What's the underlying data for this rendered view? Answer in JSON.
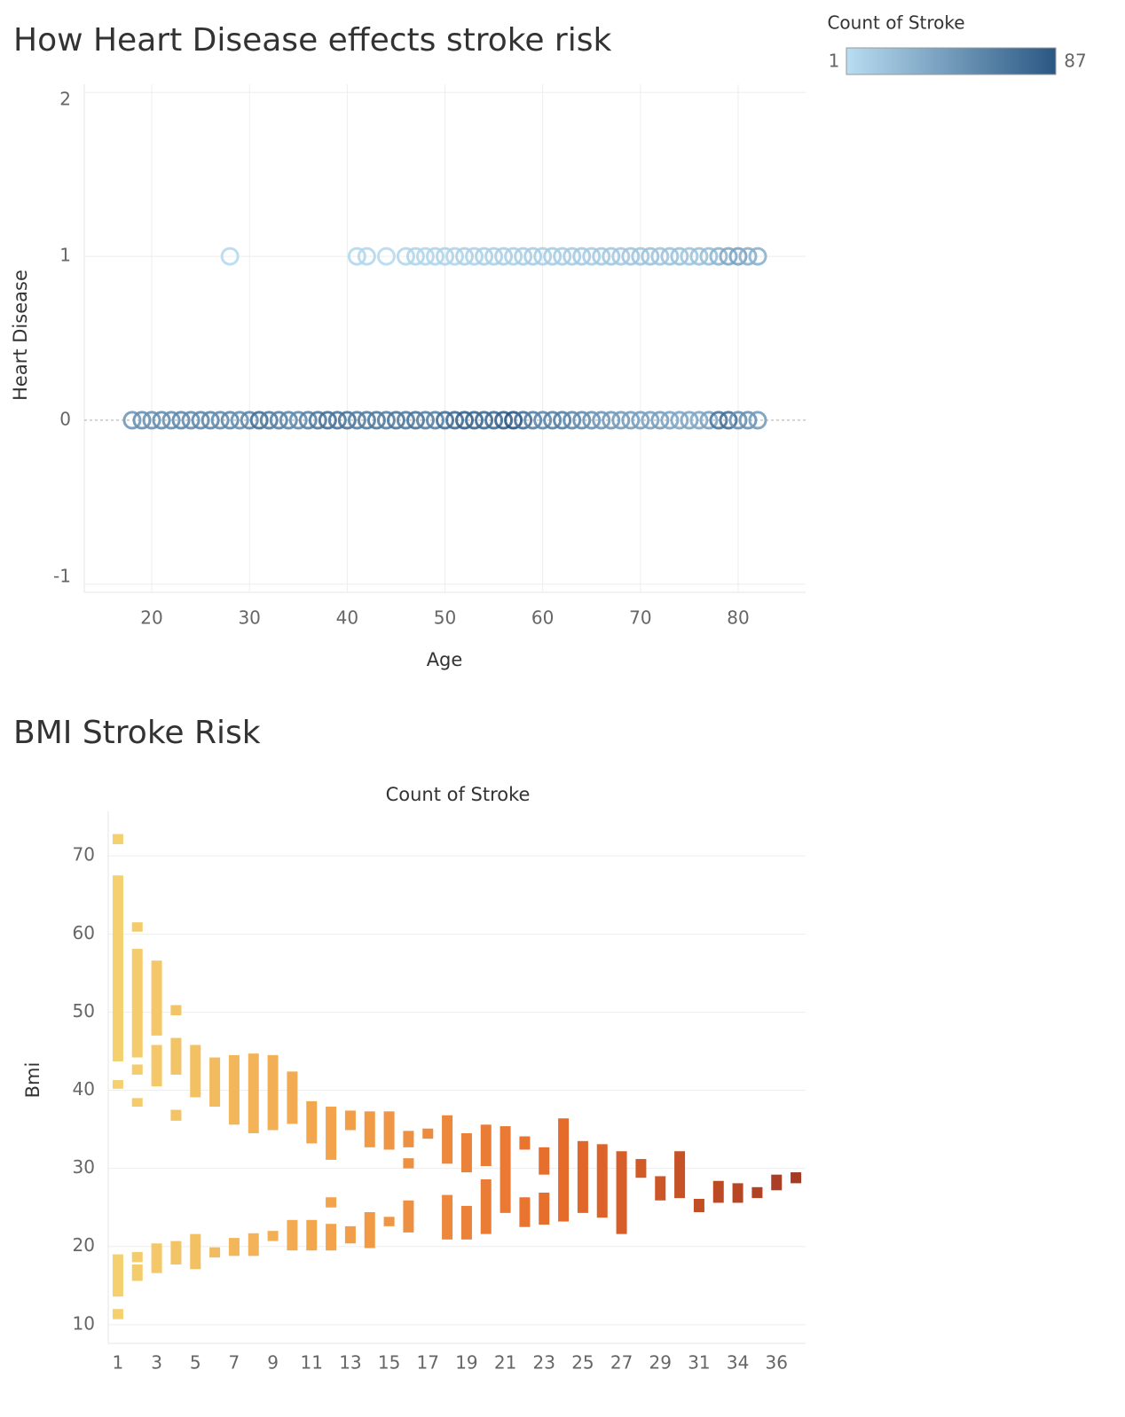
{
  "chart_data": [
    {
      "type": "scatter",
      "title": "How Heart Disease effects stroke risk",
      "x_label": "Age",
      "y_label": "Heart Disease",
      "xlim": [
        13.1,
        86.9
      ],
      "xticks": [
        20,
        30,
        40,
        50,
        60,
        70,
        80
      ],
      "ylim": [
        -1.05,
        2.05
      ],
      "yticks": [
        -1,
        0,
        1,
        2
      ],
      "grid": true,
      "legend": {
        "title": "Count of Stroke",
        "min": 1,
        "max": 87,
        "colors": [
          "#b9ddf1",
          "#2a5783"
        ]
      },
      "x": [
        18,
        19,
        20,
        21,
        22,
        23,
        24,
        25,
        26,
        27,
        28,
        29,
        30,
        31,
        32,
        33,
        34,
        35,
        36,
        37,
        38,
        39,
        40,
        41,
        42,
        43,
        44,
        45,
        46,
        47,
        48,
        49,
        50,
        51,
        52,
        53,
        54,
        55,
        56,
        57,
        58,
        59,
        60,
        61,
        62,
        63,
        64,
        65,
        66,
        67,
        68,
        69,
        70,
        71,
        72,
        73,
        74,
        75,
        76,
        77,
        78,
        79,
        80,
        81,
        82,
        28,
        41,
        42,
        44,
        46,
        47,
        48,
        49,
        50,
        51,
        52,
        53,
        54,
        55,
        56,
        57,
        58,
        59,
        60,
        61,
        62,
        63,
        64,
        65,
        66,
        67,
        68,
        69,
        70,
        71,
        72,
        73,
        74,
        75,
        76,
        77,
        78,
        79,
        80,
        81,
        82
      ],
      "y": [
        0,
        0,
        0,
        0,
        0,
        0,
        0,
        0,
        0,
        0,
        0,
        0,
        0,
        0,
        0,
        0,
        0,
        0,
        0,
        0,
        0,
        0,
        0,
        0,
        0,
        0,
        0,
        0,
        0,
        0,
        0,
        0,
        0,
        0,
        0,
        0,
        0,
        0,
        0,
        0,
        0,
        0,
        0,
        0,
        0,
        0,
        0,
        0,
        0,
        0,
        0,
        0,
        0,
        0,
        0,
        0,
        0,
        0,
        0,
        0,
        0,
        0,
        0,
        0,
        0,
        1,
        1,
        1,
        1,
        1,
        1,
        1,
        1,
        1,
        1,
        1,
        1,
        1,
        1,
        1,
        1,
        1,
        1,
        1,
        1,
        1,
        1,
        1,
        1,
        1,
        1,
        1,
        1,
        1,
        1,
        1,
        1,
        1,
        1,
        1,
        1,
        1,
        1,
        1,
        1,
        1
      ],
      "counts": [
        45,
        50,
        48,
        52,
        50,
        55,
        52,
        54,
        56,
        52,
        55,
        50,
        56,
        70,
        62,
        58,
        55,
        52,
        58,
        64,
        70,
        66,
        68,
        60,
        62,
        64,
        60,
        66,
        62,
        68,
        60,
        58,
        70,
        72,
        80,
        76,
        74,
        72,
        80,
        87,
        70,
        60,
        56,
        58,
        60,
        55,
        52,
        48,
        45,
        44,
        42,
        40,
        40,
        38,
        40,
        36,
        35,
        36,
        34,
        38,
        66,
        70,
        50,
        48,
        42,
        3,
        4,
        4,
        3,
        5,
        6,
        5,
        6,
        7,
        6,
        8,
        7,
        9,
        8,
        10,
        9,
        10,
        11,
        10,
        12,
        11,
        12,
        13,
        12,
        13,
        14,
        13,
        15,
        16,
        18,
        16,
        17,
        18,
        16,
        18,
        20,
        26,
        34,
        38,
        30,
        28
      ]
    },
    {
      "type": "range",
      "title": "BMI Stroke Risk",
      "x_label": "Count of Stroke",
      "y_label": "Bmi",
      "ylim": [
        7.6,
        75.7
      ],
      "yticks": [
        10,
        20,
        30,
        40,
        50,
        60,
        70
      ],
      "grid": true,
      "colors": [
        "#f4d06e",
        "#f2a04a",
        "#e5692a",
        "#a63a22"
      ],
      "categories": [
        1,
        null,
        3,
        null,
        5,
        null,
        7,
        null,
        9,
        null,
        11,
        null,
        13,
        null,
        15,
        null,
        17,
        null,
        19,
        null,
        21,
        null,
        23,
        null,
        25,
        null,
        27,
        null,
        29,
        null,
        31,
        null,
        34,
        null,
        36,
        null
      ],
      "ranges": [
        [
          [
            71.5,
            72.8
          ],
          [
            43.7,
            67.5
          ],
          [
            40.2,
            41.3
          ],
          [
            13.6,
            19.0
          ],
          [
            10.7,
            12.0
          ]
        ],
        [
          [
            60.3,
            61.5
          ],
          [
            44.2,
            58.1
          ],
          [
            42.0,
            43.3
          ],
          [
            37.9,
            39.0
          ],
          [
            18.0,
            19.3
          ],
          [
            15.6,
            17.7
          ]
        ],
        [
          [
            47.0,
            56.6
          ],
          [
            40.5,
            45.8
          ],
          [
            16.6,
            20.4
          ]
        ],
        [
          [
            49.6,
            50.9
          ],
          [
            42.0,
            46.7
          ],
          [
            36.1,
            37.5
          ],
          [
            17.7,
            20.7
          ]
        ],
        [
          [
            39.1,
            45.8
          ],
          [
            17.1,
            21.6
          ]
        ],
        [
          [
            37.9,
            44.2
          ],
          [
            18.6,
            19.9
          ]
        ],
        [
          [
            35.6,
            44.5
          ],
          [
            18.8,
            21.1
          ]
        ],
        [
          [
            34.5,
            44.7
          ],
          [
            18.8,
            21.7
          ]
        ],
        [
          [
            34.9,
            44.5
          ],
          [
            20.7,
            22.0
          ]
        ],
        [
          [
            35.7,
            42.4
          ],
          [
            19.5,
            23.4
          ]
        ],
        [
          [
            33.2,
            38.6
          ],
          [
            19.5,
            23.4
          ]
        ],
        [
          [
            31.1,
            37.9
          ],
          [
            25.0,
            26.3
          ],
          [
            19.5,
            22.9
          ]
        ],
        [
          [
            34.9,
            37.4
          ],
          [
            20.4,
            22.6
          ]
        ],
        [
          [
            32.7,
            37.3
          ],
          [
            19.8,
            24.4
          ]
        ],
        [
          [
            32.4,
            37.3
          ],
          [
            22.6,
            23.8
          ]
        ],
        [
          [
            32.7,
            34.8
          ],
          [
            30.0,
            31.3
          ],
          [
            21.8,
            25.9
          ]
        ],
        [
          [
            33.8,
            35.1
          ]
        ],
        [
          [
            30.6,
            36.8
          ],
          [
            20.9,
            26.6
          ]
        ],
        [
          [
            29.5,
            34.5
          ],
          [
            20.9,
            25.2
          ]
        ],
        [
          [
            30.3,
            35.6
          ],
          [
            21.6,
            28.6
          ]
        ],
        [
          [
            24.3,
            35.4
          ]
        ],
        [
          [
            32.4,
            34.1
          ],
          [
            22.5,
            26.3
          ]
        ],
        [
          [
            29.2,
            32.7
          ],
          [
            22.8,
            26.9
          ]
        ],
        [
          [
            23.2,
            36.4
          ]
        ],
        [
          [
            24.3,
            33.5
          ]
        ],
        [
          [
            23.7,
            33.1
          ]
        ],
        [
          [
            21.6,
            32.2
          ]
        ],
        [
          [
            28.8,
            31.2
          ]
        ],
        [
          [
            25.9,
            29.0
          ]
        ],
        [
          [
            26.2,
            32.2
          ]
        ],
        [
          [
            24.4,
            26.1
          ]
        ],
        [
          [
            25.6,
            28.4
          ]
        ],
        [
          [
            25.6,
            28.1
          ]
        ],
        [
          [
            26.2,
            27.6
          ]
        ],
        [
          [
            27.2,
            29.2
          ]
        ],
        [
          [
            28.1,
            29.5
          ]
        ]
      ]
    }
  ]
}
